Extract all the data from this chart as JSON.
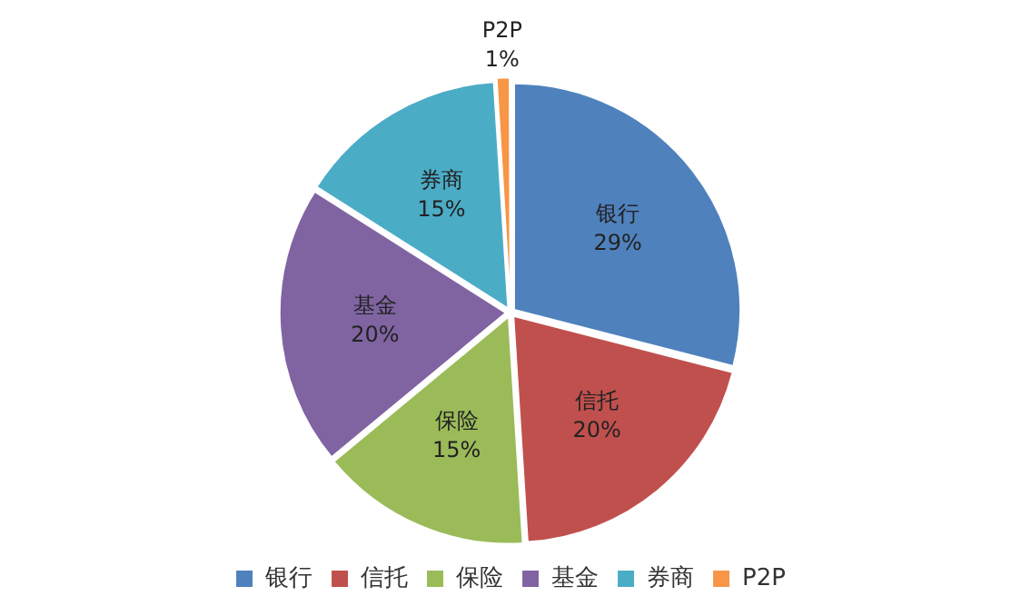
{
  "chart_data": {
    "type": "pie",
    "categories": [
      "银行",
      "信托",
      "保险",
      "基金",
      "券商",
      "P2P"
    ],
    "values": [
      29,
      20,
      15,
      20,
      15,
      1
    ],
    "value_labels": [
      "29%",
      "20%",
      "15%",
      "20%",
      "15%",
      "1%"
    ],
    "colors": [
      "#4f81bd",
      "#c0504d",
      "#9bbb59",
      "#8064a2",
      "#4bacc6",
      "#f79646"
    ],
    "legend": "bottom"
  }
}
